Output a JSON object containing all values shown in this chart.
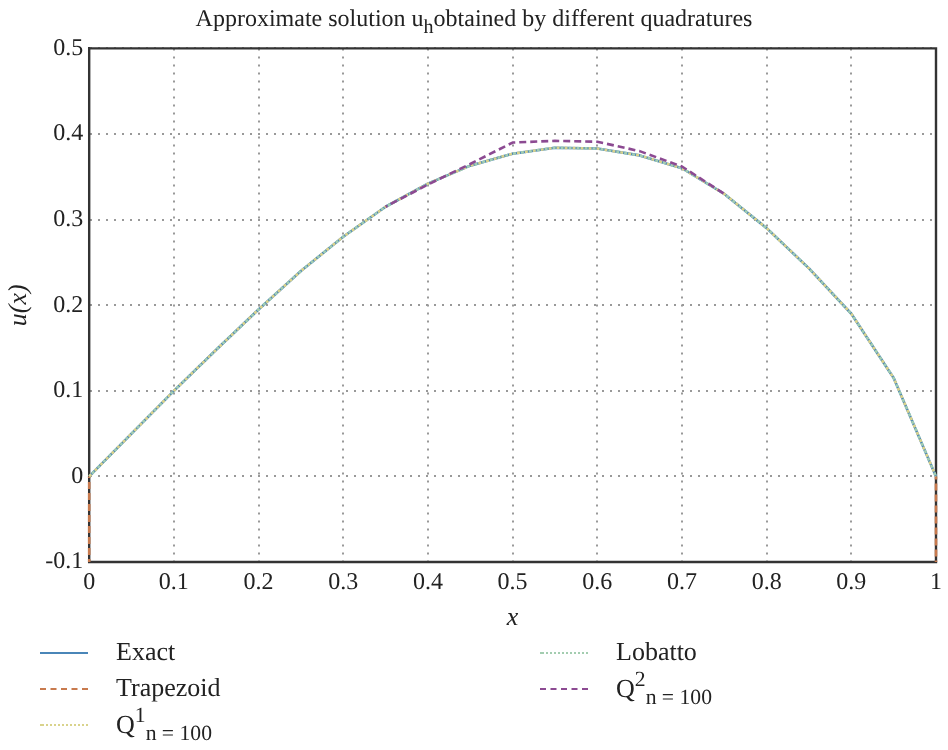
{
  "chart_data": {
    "type": "line",
    "title": "Approximate solution u$_{h}$obtained by different quadratures",
    "xlabel": "x",
    "ylabel": "u(x)",
    "x": [
      0,
      0.05,
      0.1,
      0.15,
      0.2,
      0.25,
      0.3,
      0.35,
      0.4,
      0.45,
      0.5,
      0.55,
      0.6,
      0.65,
      0.7,
      0.75,
      0.8,
      0.85,
      0.9,
      0.95,
      1
    ],
    "series": [
      {
        "name": "Exact",
        "color": "#4a86b8",
        "line_style": "solid",
        "values": [
          0,
          0.05,
          0.1,
          0.148,
          0.195,
          0.24,
          0.28,
          0.315,
          0.342,
          0.363,
          0.377,
          0.384,
          0.383,
          0.375,
          0.36,
          0.33,
          0.29,
          0.243,
          0.19,
          0.115,
          0
        ]
      },
      {
        "name": "Trapezoid",
        "color": "#c87a4e",
        "line_style": "dashed",
        "x": [
          0,
          0,
          0.5,
          1,
          1
        ],
        "values": [
          -0.1,
          0,
          null,
          0,
          -0.1
        ]
      },
      {
        "name": "Q$^{1}$$_{n = 100}$",
        "color": "#d9d38c",
        "line_style": "dotted",
        "values": [
          0,
          0.05,
          0.1,
          0.148,
          0.195,
          0.24,
          0.28,
          0.315,
          0.342,
          0.363,
          0.377,
          0.384,
          0.383,
          0.375,
          0.36,
          0.33,
          0.29,
          0.243,
          0.19,
          0.115,
          0
        ]
      },
      {
        "name": "Lobatto",
        "color": "#a3cdb0",
        "line_style": "dotted",
        "values": [
          0,
          0.05,
          0.1,
          0.148,
          0.195,
          0.24,
          0.28,
          0.315,
          0.342,
          0.363,
          0.377,
          0.384,
          0.383,
          0.375,
          0.36,
          0.33,
          0.29,
          0.243,
          0.19,
          0.115,
          0
        ]
      },
      {
        "name": "Q$^{2}$$_{n = 100}$",
        "color": "#8c4a92",
        "line_style": "dashed",
        "x": [
          0.35,
          0.4,
          0.45,
          0.5,
          0.55,
          0.6,
          0.65,
          0.7,
          0.75
        ],
        "values": [
          0.315,
          0.341,
          0.365,
          0.39,
          0.392,
          0.391,
          0.38,
          0.362,
          0.33
        ]
      }
    ],
    "xlim": [
      0,
      1
    ],
    "xticks": [
      0,
      0.1,
      0.2,
      0.3,
      0.4,
      0.5,
      0.6,
      0.7,
      0.8,
      0.9,
      1
    ],
    "ylim": [
      -0.1,
      0.5
    ],
    "yticks": [
      -0.1,
      0,
      0.1,
      0.2,
      0.3,
      0.4,
      0.5
    ],
    "grid": true,
    "legend": "bottom",
    "marker": "none"
  }
}
